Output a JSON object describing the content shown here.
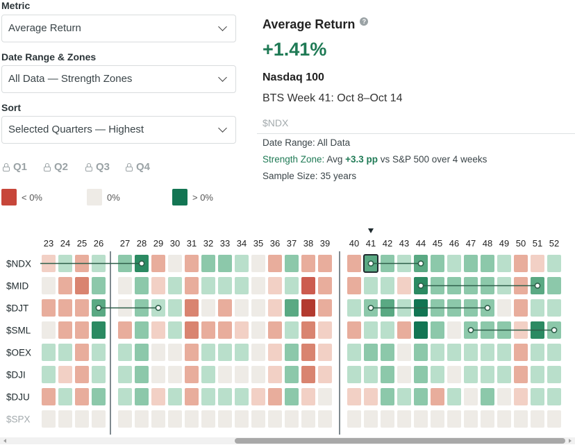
{
  "controls": {
    "metric_label": "Metric",
    "metric_value": "Average Return",
    "range_label": "Date Range & Zones",
    "range_value": "All Data — Strength Zones",
    "sort_label": "Sort",
    "sort_value": "Selected Quarters — Highest",
    "quarters": [
      "Q1",
      "Q2",
      "Q3",
      "Q4"
    ]
  },
  "legend": {
    "neg": "< 0%",
    "zero": "0%",
    "pos": "> 0%"
  },
  "colors": {
    "neg": "#c7463a",
    "zero": "#eeebe6",
    "pos": "#137553",
    "accent": "#1f7a55"
  },
  "panel": {
    "title": "Average Return",
    "help_icon": "?",
    "value": "+1.41%",
    "ticker_name": "Nasdaq 100",
    "week": "BTS Week 41: Oct 8–Oct 14",
    "ticker_symbol": "$NDX",
    "date_range": "Date Range: All Data",
    "zone_label": "Strength Zone:",
    "zone_pre": " Avg ",
    "zone_value": "+3.3 pp",
    "zone_post": " vs S&P 500 over 4 weeks",
    "sample": "Sample Size: 35 years"
  },
  "heatmap": {
    "weeks": [
      23,
      24,
      25,
      26,
      27,
      28,
      29,
      30,
      31,
      32,
      33,
      34,
      35,
      36,
      37,
      38,
      39,
      40,
      41,
      42,
      43,
      44,
      45,
      46,
      47,
      48,
      49,
      50,
      51,
      52
    ],
    "selected_week": 41,
    "rows": [
      {
        "ticker": "$NDX",
        "values": [
          -1,
          1,
          -2,
          1,
          2,
          4,
          -2,
          0,
          -2,
          2,
          2,
          1,
          0,
          -2,
          2,
          -2,
          -2,
          -2,
          3,
          2,
          1,
          3,
          2,
          1,
          2,
          2,
          1,
          -2,
          -1,
          1
        ]
      },
      {
        "ticker": "$MID",
        "values": [
          0,
          -2,
          -3,
          2,
          0,
          2,
          -1,
          1,
          -2,
          1,
          1,
          1,
          0,
          -1,
          1,
          -4,
          -2,
          -2,
          1,
          1,
          -1,
          4,
          2,
          2,
          2,
          2,
          1,
          -2,
          3,
          2
        ]
      },
      {
        "ticker": "$DJT",
        "values": [
          -2,
          -2,
          -2,
          3,
          0,
          2,
          1,
          1,
          -3,
          0,
          -2,
          0,
          0,
          -1,
          3,
          -5,
          -2,
          1,
          2,
          3,
          1,
          5,
          2,
          2,
          2,
          2,
          0,
          -2,
          1,
          1
        ]
      },
      {
        "ticker": "$SML",
        "values": [
          0,
          -2,
          -2,
          4,
          -2,
          2,
          -1,
          1,
          -3,
          -2,
          -2,
          -1,
          0,
          -2,
          1,
          -3,
          -1,
          -2,
          1,
          1,
          -2,
          5,
          2,
          0,
          2,
          2,
          2,
          -1,
          4,
          2
        ]
      },
      {
        "ticker": "$OEX",
        "values": [
          1,
          1,
          -2,
          1,
          1,
          2,
          0,
          0,
          -2,
          1,
          1,
          1,
          0,
          -1,
          2,
          -3,
          -1,
          1,
          2,
          2,
          0,
          2,
          1,
          1,
          1,
          1,
          1,
          -2,
          1,
          1
        ]
      },
      {
        "ticker": "$DJI",
        "values": [
          1,
          -1,
          -2,
          1,
          1,
          2,
          0,
          0,
          -2,
          1,
          0,
          0,
          0,
          -1,
          2,
          -3,
          -1,
          1,
          1,
          2,
          0,
          2,
          1,
          0,
          1,
          1,
          1,
          -2,
          1,
          1
        ]
      },
      {
        "ticker": "$DJU",
        "values": [
          -2,
          1,
          -2,
          2,
          1,
          2,
          -1,
          1,
          -2,
          1,
          1,
          1,
          -1,
          -2,
          2,
          -1,
          0,
          -1,
          -1,
          2,
          1,
          2,
          -2,
          1,
          0,
          2,
          0,
          -1,
          1,
          1
        ]
      },
      {
        "ticker": "$SPX",
        "values": [
          0,
          0,
          0,
          0,
          0,
          0,
          0,
          0,
          0,
          0,
          0,
          0,
          0,
          0,
          0,
          0,
          0,
          0,
          0,
          0,
          0,
          0,
          0,
          0,
          0,
          0,
          0,
          0,
          0,
          0
        ]
      }
    ],
    "zones": [
      {
        "row": "$NDX",
        "from": 23,
        "to": 28
      },
      {
        "row": "$NDX",
        "from": 41,
        "to": 44
      },
      {
        "row": "$MID",
        "from": 44,
        "to": 51
      },
      {
        "row": "$DJT",
        "from": 26,
        "to": 29
      },
      {
        "row": "$DJT",
        "from": 41,
        "to": 48
      },
      {
        "row": "$SML",
        "from": 47,
        "to": 52
      }
    ]
  }
}
